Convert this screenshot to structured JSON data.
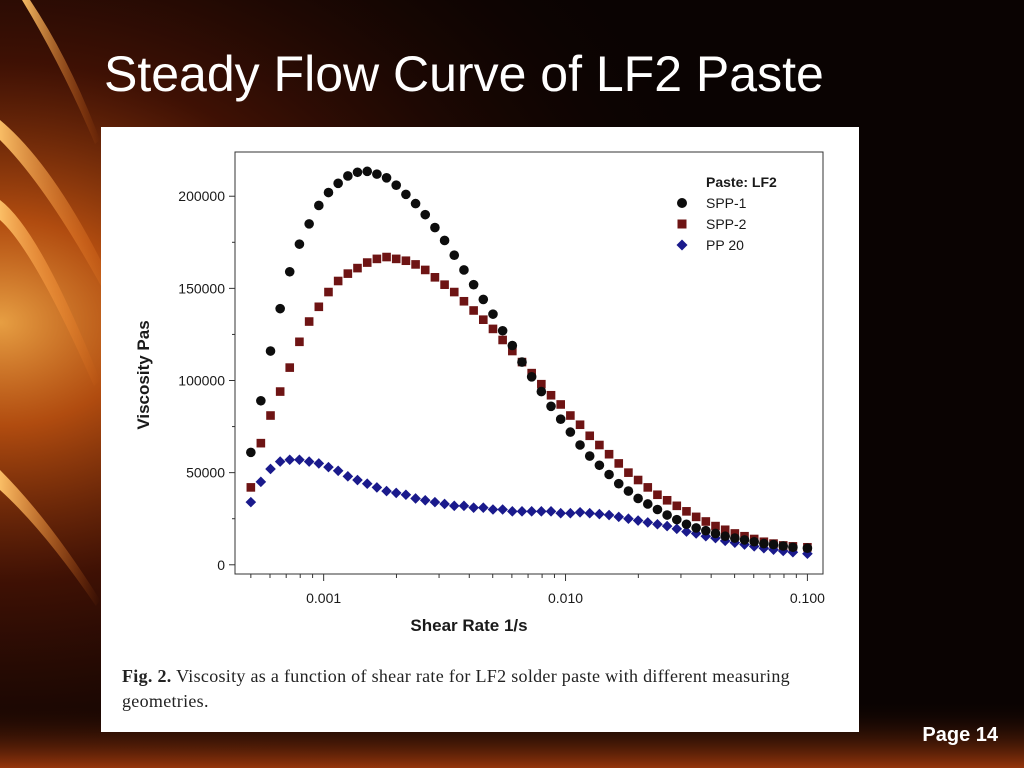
{
  "slide": {
    "title": "Steady Flow Curve of LF2 Paste",
    "page_label": "Page 14"
  },
  "figure": {
    "caption_label": "Fig. 2.",
    "caption_text": "Viscosity as a function of shear rate for LF2 solder paste with different measuring geometries."
  },
  "colors": {
    "background": "#0a0302",
    "flare": "#ff8a2a",
    "spp1": "#0d0d0d",
    "spp2": "#6e1414",
    "pp20": "#1a1a8c"
  },
  "chart_data": {
    "type": "scatter",
    "title": "",
    "xlabel": "Shear Rate 1/s",
    "ylabel": "Viscosity Pas",
    "x_scale": "log",
    "xlim": [
      0.00043,
      0.116
    ],
    "ylim": [
      -5000,
      224000
    ],
    "x_ticks": [
      0.001,
      0.01,
      0.1
    ],
    "x_tick_labels": [
      "0.001",
      "0.010",
      "0.100"
    ],
    "y_ticks": [
      0,
      50000,
      100000,
      150000,
      200000
    ],
    "y_tick_labels": [
      "0",
      "50000",
      "100000",
      "150000",
      "200000"
    ],
    "grid": false,
    "legend_title": "Paste: LF2",
    "legend_position": "top-right",
    "series": [
      {
        "name": "SPP-1",
        "marker": "circle",
        "x": [
          0.0005,
          0.00055,
          0.000603,
          0.000661,
          0.000724,
          0.000794,
          0.000871,
          0.000955,
          0.001047,
          0.001148,
          0.001259,
          0.00138,
          0.001514,
          0.00166,
          0.00182,
          0.001995,
          0.002188,
          0.002399,
          0.00263,
          0.002884,
          0.003162,
          0.003467,
          0.003802,
          0.004169,
          0.004571,
          0.005012,
          0.005495,
          0.006026,
          0.006607,
          0.007244,
          0.007943,
          0.00871,
          0.00955,
          0.010471,
          0.011482,
          0.012589,
          0.013804,
          0.015136,
          0.016596,
          0.018197,
          0.019953,
          0.021878,
          0.023988,
          0.026303,
          0.02884,
          0.031623,
          0.034674,
          0.038019,
          0.041687,
          0.045709,
          0.050119,
          0.054954,
          0.060256,
          0.066069,
          0.072444,
          0.079433,
          0.087096,
          0.1
        ],
        "y": [
          61000,
          89000,
          116000,
          139000,
          159000,
          174000,
          185000,
          195000,
          202000,
          207000,
          211000,
          213000,
          213500,
          212000,
          210000,
          206000,
          201000,
          196000,
          190000,
          183000,
          176000,
          168000,
          160000,
          152000,
          144000,
          136000,
          127000,
          119000,
          110000,
          102000,
          94000,
          86000,
          79000,
          72000,
          65000,
          59000,
          54000,
          49000,
          44000,
          40000,
          36000,
          33000,
          30000,
          27000,
          24500,
          22000,
          20000,
          18500,
          17000,
          15500,
          14500,
          13500,
          12500,
          11500,
          11000,
          10200,
          9500,
          9000
        ]
      },
      {
        "name": "SPP-2",
        "marker": "square",
        "x": [
          0.0005,
          0.00055,
          0.000603,
          0.000661,
          0.000724,
          0.000794,
          0.000871,
          0.000955,
          0.001047,
          0.001148,
          0.001259,
          0.00138,
          0.001514,
          0.00166,
          0.00182,
          0.001995,
          0.002188,
          0.002399,
          0.00263,
          0.002884,
          0.003162,
          0.003467,
          0.003802,
          0.004169,
          0.004571,
          0.005012,
          0.005495,
          0.006026,
          0.006607,
          0.007244,
          0.007943,
          0.00871,
          0.00955,
          0.010471,
          0.011482,
          0.012589,
          0.013804,
          0.015136,
          0.016596,
          0.018197,
          0.019953,
          0.021878,
          0.023988,
          0.026303,
          0.02884,
          0.031623,
          0.034674,
          0.038019,
          0.041687,
          0.045709,
          0.050119,
          0.054954,
          0.060256,
          0.066069,
          0.072444,
          0.079433,
          0.087096,
          0.1
        ],
        "y": [
          42000,
          66000,
          81000,
          94000,
          107000,
          121000,
          132000,
          140000,
          148000,
          154000,
          158000,
          161000,
          164000,
          166000,
          167000,
          166000,
          165000,
          163000,
          160000,
          156000,
          152000,
          148000,
          143000,
          138000,
          133000,
          128000,
          122000,
          116000,
          110000,
          104000,
          98000,
          92000,
          87000,
          81000,
          76000,
          70000,
          65000,
          60000,
          55000,
          50000,
          46000,
          42000,
          38000,
          35000,
          32000,
          29000,
          26000,
          23500,
          21000,
          19000,
          17000,
          15500,
          14000,
          12500,
          11500,
          10500,
          10000,
          9500
        ]
      },
      {
        "name": "PP 20",
        "marker": "diamond",
        "x": [
          0.0005,
          0.00055,
          0.000603,
          0.000661,
          0.000724,
          0.000794,
          0.000871,
          0.000955,
          0.001047,
          0.001148,
          0.001259,
          0.00138,
          0.001514,
          0.00166,
          0.00182,
          0.001995,
          0.002188,
          0.002399,
          0.00263,
          0.002884,
          0.003162,
          0.003467,
          0.003802,
          0.004169,
          0.004571,
          0.005012,
          0.005495,
          0.006026,
          0.006607,
          0.007244,
          0.007943,
          0.00871,
          0.00955,
          0.010471,
          0.011482,
          0.012589,
          0.013804,
          0.015136,
          0.016596,
          0.018197,
          0.019953,
          0.021878,
          0.023988,
          0.026303,
          0.02884,
          0.031623,
          0.034674,
          0.038019,
          0.041687,
          0.045709,
          0.050119,
          0.054954,
          0.060256,
          0.066069,
          0.072444,
          0.079433,
          0.087096,
          0.1
        ],
        "y": [
          34000,
          45000,
          52000,
          56000,
          57000,
          57000,
          56000,
          55000,
          53000,
          51000,
          48000,
          46000,
          44000,
          42000,
          40000,
          39000,
          38000,
          36000,
          35000,
          34000,
          33000,
          32000,
          32000,
          31000,
          31000,
          30000,
          30000,
          29000,
          29000,
          29000,
          29000,
          29000,
          28000,
          28000,
          28500,
          28000,
          27500,
          27000,
          26000,
          25000,
          24000,
          23000,
          22000,
          21000,
          19500,
          18000,
          17000,
          15500,
          14500,
          13000,
          12000,
          11000,
          10000,
          9000,
          8200,
          7500,
          6800,
          6000
        ]
      }
    ]
  }
}
